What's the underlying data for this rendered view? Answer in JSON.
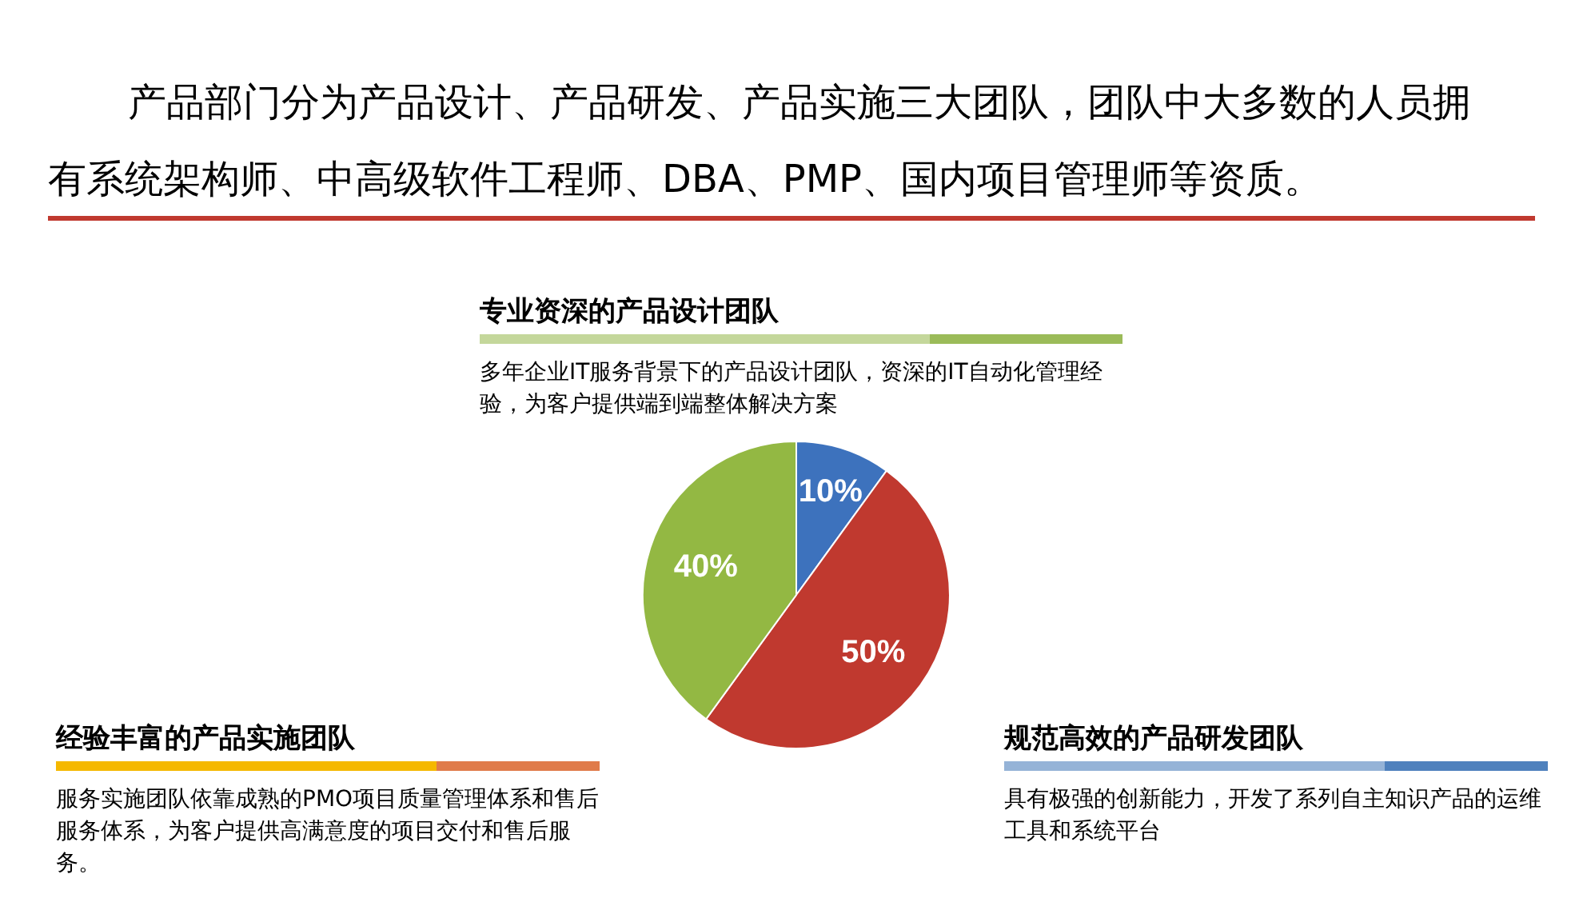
{
  "chart_data": {
    "type": "pie",
    "title": "产品部门分为产品设计、产品研发、产品实施三大团队，团队中大多数的人员拥有系统架构师、中高级软件工程师、DBA、PMP、国内项目管理师等资质。",
    "categories": [
      null,
      null,
      null
    ],
    "values": [
      10,
      50,
      40
    ],
    "colors": [
      "#3d72bd",
      "#c0392f",
      "#93b843"
    ],
    "value_labels": [
      "10%",
      "50%",
      "40%"
    ],
    "annotations": [
      "专业资深的产品设计团队",
      "多年企业IT服务背景下的产品设计团队，资深的IT自动化管理经验，为客户提供端到端整体解决方案",
      "经验丰富的产品实施团队",
      "服务实施团队依靠成熟的PMO项目质量管理体系和售后服务体系，为客户提供高满意度的项目交付和售后服务。",
      "规范高效的产品研发团队",
      "具有极强的创新能力，开发了系列自主知识产品的运维工具和系统平台"
    ]
  }
}
